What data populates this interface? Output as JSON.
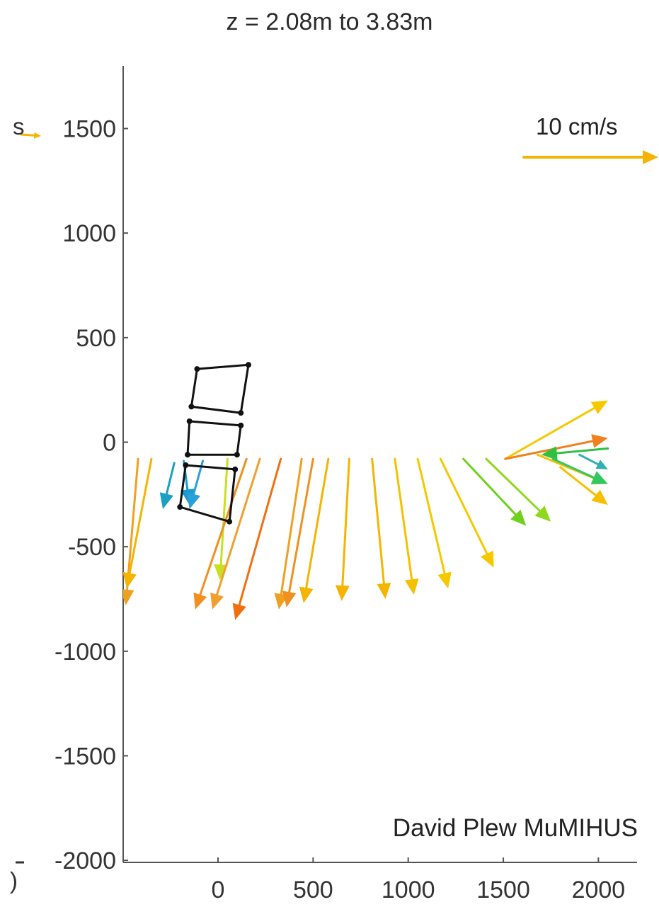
{
  "chart_data": {
    "type": "quiver",
    "title": "z = 2.08m to 3.83m",
    "xlabel": "",
    "ylabel": "",
    "xlim": [
      -500,
      2050
    ],
    "ylim": [
      -2000,
      1800
    ],
    "x_ticks": [
      "500",
      "1000",
      "1500",
      "2000"
    ],
    "x_tick_values": [
      500,
      1000,
      1500,
      2000
    ],
    "x_zero_label": "0",
    "x_zero_value": 0,
    "y_ticks": [
      "1500",
      "1000",
      "500",
      "0",
      "-500",
      "-1000",
      "-1500",
      "-2000"
    ],
    "y_tick_values": [
      1500,
      1000,
      500,
      0,
      -500,
      -1000,
      -1500,
      -2000
    ],
    "reference_vector": {
      "label": "10 cm/s",
      "color": "#f5b400"
    },
    "truncated_left_labels": [
      "s",
      ")"
    ],
    "vectors": [
      {
        "x0": -420,
        "y0": -80,
        "x1": -485,
        "y1": -780,
        "color": "#f0a020"
      },
      {
        "x0": -350,
        "y0": -80,
        "x1": -480,
        "y1": -700,
        "color": "#f5b400"
      },
      {
        "x0": -230,
        "y0": -100,
        "x1": -290,
        "y1": -320,
        "color": "#1aa0c0"
      },
      {
        "x0": -180,
        "y0": -90,
        "x1": -150,
        "y1": -300,
        "color": "#1a9bd0"
      },
      {
        "x0": -80,
        "y0": -90,
        "x1": -150,
        "y1": -320,
        "color": "#2aa0d8"
      },
      {
        "x0": 50,
        "y0": -80,
        "x1": 10,
        "y1": -660,
        "color": "#c8e020"
      },
      {
        "x0": 150,
        "y0": -80,
        "x1": -120,
        "y1": -800,
        "color": "#f09020"
      },
      {
        "x0": 220,
        "y0": -80,
        "x1": -30,
        "y1": -800,
        "color": "#f0a030"
      },
      {
        "x0": 330,
        "y0": -80,
        "x1": 90,
        "y1": -850,
        "color": "#f07010"
      },
      {
        "x0": 440,
        "y0": -80,
        "x1": 320,
        "y1": -800,
        "color": "#f0a020"
      },
      {
        "x0": 500,
        "y0": -80,
        "x1": 360,
        "y1": -790,
        "color": "#f09020"
      },
      {
        "x0": 580,
        "y0": -80,
        "x1": 450,
        "y1": -770,
        "color": "#f5b400"
      },
      {
        "x0": 690,
        "y0": -80,
        "x1": 650,
        "y1": -760,
        "color": "#f5b400"
      },
      {
        "x0": 810,
        "y0": -80,
        "x1": 880,
        "y1": -750,
        "color": "#f5b400"
      },
      {
        "x0": 930,
        "y0": -80,
        "x1": 1030,
        "y1": -730,
        "color": "#f5c000"
      },
      {
        "x0": 1050,
        "y0": -80,
        "x1": 1210,
        "y1": -700,
        "color": "#f5c800"
      },
      {
        "x0": 1170,
        "y0": -80,
        "x1": 1450,
        "y1": -600,
        "color": "#f5c800"
      },
      {
        "x0": 1290,
        "y0": -80,
        "x1": 1620,
        "y1": -400,
        "color": "#70d020"
      },
      {
        "x0": 1410,
        "y0": -80,
        "x1": 1750,
        "y1": -380,
        "color": "#90d820"
      },
      {
        "x0": 1510,
        "y0": -80,
        "x1": 2050,
        "y1": 200,
        "color": "#f5c800"
      },
      {
        "x0": 1510,
        "y0": -80,
        "x1": 2050,
        "y1": 20,
        "color": "#f08020"
      },
      {
        "x0": 2050,
        "y0": -30,
        "x1": 1700,
        "y1": -60,
        "color": "#30c040"
      },
      {
        "x0": 1680,
        "y0": -60,
        "x1": 2050,
        "y1": -200,
        "color": "#f5c000"
      },
      {
        "x0": 1760,
        "y0": -80,
        "x1": 2050,
        "y1": -200,
        "color": "#30c860"
      },
      {
        "x0": 1900,
        "y0": -60,
        "x1": 2050,
        "y1": -130,
        "color": "#30b0b0"
      },
      {
        "x0": 1800,
        "y0": -120,
        "x1": 2050,
        "y1": -300,
        "color": "#f5c000"
      }
    ],
    "structure": [
      {
        "points": [
          [
            -110,
            350
          ],
          [
            160,
            370
          ],
          [
            120,
            140
          ],
          [
            -140,
            170
          ]
        ]
      },
      {
        "points": [
          [
            -150,
            100
          ],
          [
            120,
            80
          ],
          [
            100,
            -60
          ],
          [
            -160,
            -60
          ]
        ]
      },
      {
        "points": [
          [
            -170,
            -110
          ],
          [
            90,
            -130
          ],
          [
            60,
            -380
          ],
          [
            -200,
            -310
          ]
        ]
      }
    ]
  },
  "credit": "David Plew MuMIHUS",
  "colors": {
    "axis": "#555555",
    "text": "#222222",
    "structure": "#111111"
  }
}
